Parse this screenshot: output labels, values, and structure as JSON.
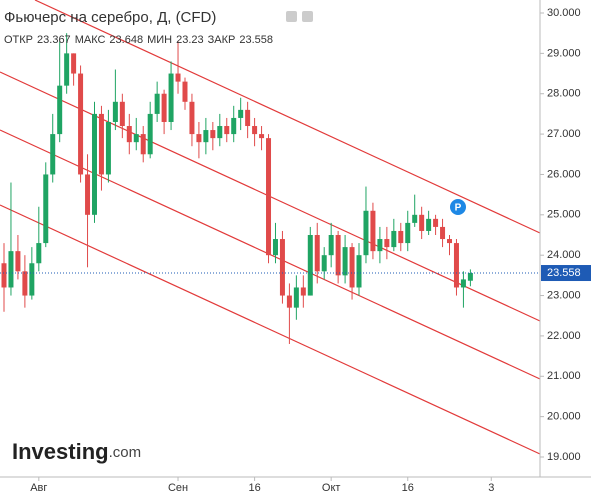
{
  "chart_data": {
    "type": "candlestick",
    "title": "Фьючерс на серебро, Д, (CFD)",
    "ohlc_labels": [
      "ОТКР",
      "МАКС",
      "МИН",
      "ЗАКР"
    ],
    "brand": "Investing",
    "brand_suffix": ".com",
    "marker": "P",
    "up_color": "#1fa463",
    "down_color": "#e04a4a",
    "open": [
      23.8,
      23.2,
      24.1,
      23.6,
      23.0,
      23.8,
      24.3,
      26.0,
      27.0,
      28.2,
      29.0,
      28.5,
      26.0,
      25.0,
      27.5,
      26.0,
      27.3,
      27.8,
      27.2,
      26.8,
      27.0,
      26.5,
      27.5,
      28.0,
      27.3,
      28.5,
      28.3,
      27.8,
      27.0,
      26.8,
      27.1,
      26.9,
      27.2,
      27.0,
      27.4,
      27.6,
      27.2,
      27.0,
      26.9,
      24.0,
      24.4,
      23.0,
      22.7,
      23.2,
      23.0,
      24.5,
      23.6,
      24.0,
      24.5,
      23.5,
      24.2,
      23.2,
      24.0,
      25.1,
      24.1,
      24.4,
      24.2,
      24.6,
      24.3,
      24.8,
      25.0,
      24.6,
      24.9,
      24.7,
      24.4,
      24.3,
      23.2,
      23.367
    ],
    "high": [
      24.3,
      25.8,
      24.5,
      24.0,
      24.2,
      25.2,
      26.3,
      27.5,
      29.3,
      29.5,
      29.0,
      28.7,
      26.5,
      27.8,
      27.7,
      27.6,
      28.6,
      28.0,
      27.5,
      27.4,
      27.2,
      27.8,
      28.3,
      28.1,
      28.8,
      29.3,
      28.4,
      28.0,
      27.3,
      27.4,
      27.3,
      27.5,
      27.4,
      27.7,
      27.9,
      27.8,
      27.4,
      27.2,
      27.0,
      24.8,
      24.6,
      23.3,
      23.5,
      23.5,
      24.7,
      24.8,
      24.2,
      24.8,
      24.6,
      24.5,
      24.3,
      24.3,
      25.7,
      25.3,
      24.7,
      24.7,
      24.9,
      24.8,
      25.1,
      25.5,
      25.2,
      25.1,
      25.0,
      24.9,
      24.5,
      24.4,
      23.6,
      23.648
    ],
    "low": [
      22.6,
      23.0,
      23.4,
      22.7,
      22.9,
      23.6,
      24.2,
      25.8,
      26.8,
      28.0,
      28.2,
      25.8,
      23.7,
      24.8,
      25.6,
      25.8,
      27.1,
      26.9,
      26.5,
      26.6,
      26.3,
      26.4,
      27.3,
      27.0,
      27.1,
      28.0,
      27.6,
      26.7,
      26.4,
      26.5,
      26.6,
      26.7,
      26.8,
      26.8,
      27.1,
      26.9,
      26.7,
      26.6,
      23.8,
      23.8,
      22.8,
      21.8,
      22.4,
      22.7,
      23.0,
      23.3,
      23.4,
      23.7,
      23.3,
      23.3,
      22.9,
      23.0,
      23.8,
      23.9,
      23.8,
      23.9,
      24.1,
      24.1,
      24.1,
      24.7,
      24.4,
      24.5,
      24.5,
      24.2,
      24.0,
      23.0,
      22.7,
      23.23
    ],
    "close": [
      23.2,
      24.1,
      23.6,
      23.0,
      23.8,
      24.3,
      26.0,
      27.0,
      28.2,
      29.0,
      28.5,
      26.0,
      25.0,
      27.5,
      26.0,
      27.3,
      27.8,
      27.2,
      26.8,
      27.0,
      26.5,
      27.5,
      28.0,
      27.3,
      28.5,
      28.3,
      27.8,
      27.0,
      26.8,
      27.1,
      26.9,
      27.2,
      27.0,
      27.4,
      27.6,
      27.2,
      27.0,
      26.9,
      24.0,
      24.4,
      23.0,
      22.7,
      23.2,
      23.0,
      24.5,
      23.6,
      24.0,
      24.5,
      23.5,
      24.2,
      23.2,
      24.0,
      25.1,
      24.1,
      24.4,
      24.2,
      24.6,
      24.3,
      24.8,
      25.0,
      24.6,
      24.9,
      24.7,
      24.4,
      24.3,
      23.2,
      23.4,
      23.558
    ],
    "xlim": [
      0,
      77
    ],
    "xticks": [
      {
        "value": 5,
        "label": "Авг"
      },
      {
        "value": 25,
        "label": "Сен"
      },
      {
        "value": 36,
        "label": "16"
      },
      {
        "value": 47,
        "label": "Окт"
      },
      {
        "value": 58,
        "label": "16"
      },
      {
        "value": 70,
        "label": "3"
      }
    ],
    "ylim": [
      18.7,
      30.3
    ],
    "yticks": [
      {
        "value": 19,
        "label": "19.000"
      },
      {
        "value": 20,
        "label": "20.000"
      },
      {
        "value": 21,
        "label": "21.000"
      },
      {
        "value": 22,
        "label": "22.000"
      },
      {
        "value": 23,
        "label": "23.000"
      },
      {
        "value": 24,
        "label": "24.000"
      },
      {
        "value": 25,
        "label": "25.000"
      },
      {
        "value": 26,
        "label": "26.000"
      },
      {
        "value": 27,
        "label": "27.000"
      },
      {
        "value": 28,
        "label": "28.000"
      },
      {
        "value": 29,
        "label": "29.000"
      },
      {
        "value": 30,
        "label": "30.000"
      }
    ],
    "grid": false
  }
}
